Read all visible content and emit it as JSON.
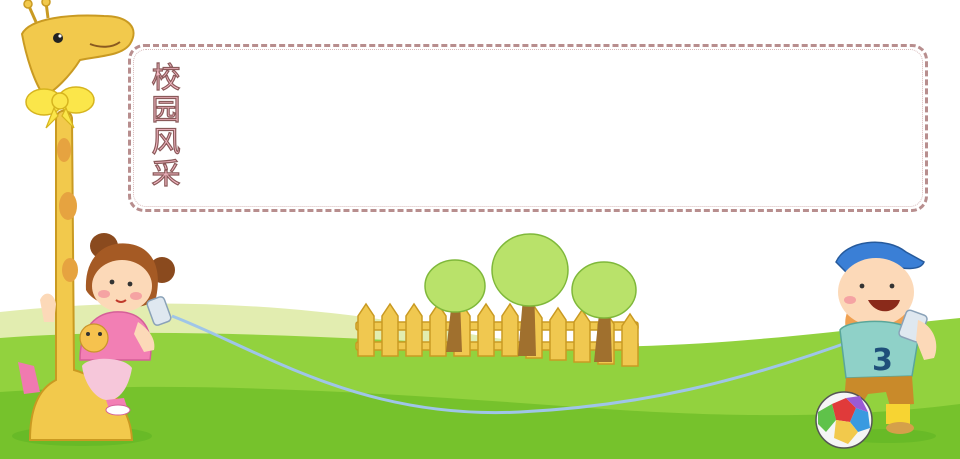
{
  "banner": {
    "title": "校园风采"
  },
  "colors": {
    "sky": "#ffffff",
    "grass_light": "#dfeaa8",
    "grass": "#8bcf3a",
    "grass_dark": "#5fb424",
    "frame_border": "#b88e8e",
    "title_fill": "#f4b8c4",
    "giraffe": "#f2c94c",
    "fence": "#f0c850",
    "string": "#9fc5e8"
  },
  "icons": [
    "giraffe-icon",
    "girl-icon",
    "boy-icon",
    "soccer-ball-icon",
    "tree-icon",
    "fence-icon",
    "tin-can-phone-icon"
  ]
}
